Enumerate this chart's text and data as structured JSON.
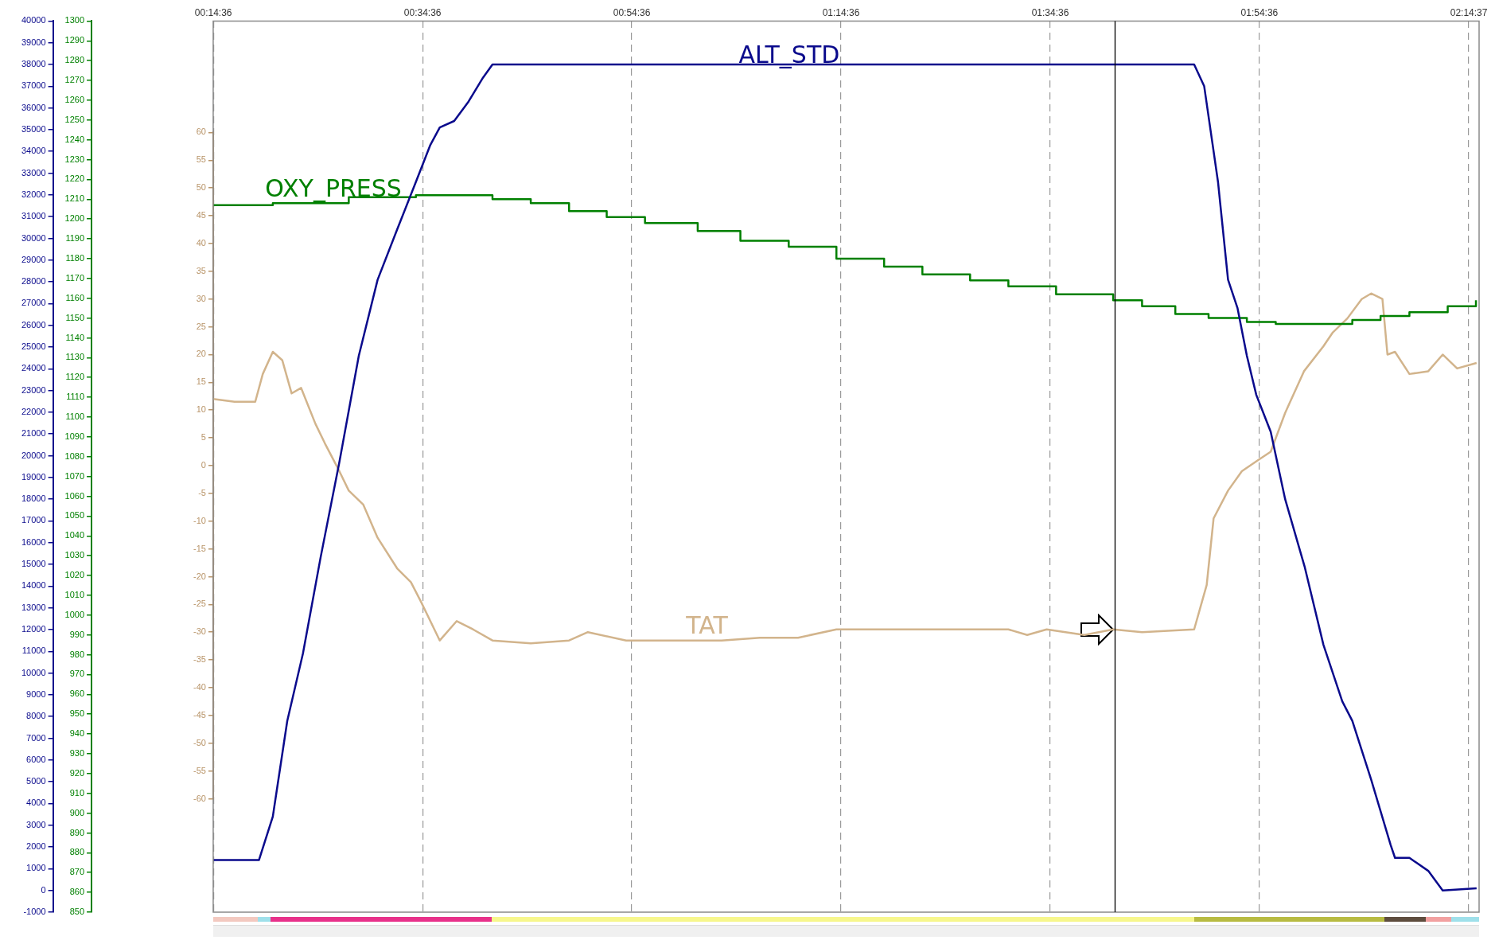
{
  "chart_data": {
    "type": "line",
    "xlim": [
      0.243,
      2.26
    ],
    "xticks": [
      {
        "value": 0.2433,
        "label": "00:14:36"
      },
      {
        "value": 0.5767,
        "label": "00:34:36"
      },
      {
        "value": 0.91,
        "label": "00:54:36"
      },
      {
        "value": 1.2433,
        "label": "01:14:36"
      },
      {
        "value": 1.5767,
        "label": "01:34:36"
      },
      {
        "value": 1.91,
        "label": "01:54:36"
      },
      {
        "value": 2.2436,
        "label": "02:14:37"
      }
    ],
    "ylim": [
      -1000,
      40000
    ],
    "yticks": [
      -1000,
      0,
      1000,
      2000,
      3000,
      4000,
      5000,
      6000,
      7000,
      8000,
      9000,
      10000,
      11000,
      12000,
      13000,
      14000,
      15000,
      16000,
      17000,
      18000,
      19000,
      20000,
      21000,
      22000,
      23000,
      24000,
      25000,
      26000,
      27000,
      28000,
      29000,
      30000,
      31000,
      32000,
      33000,
      34000,
      35000,
      36000,
      37000,
      38000,
      39000,
      40000
    ],
    "y2lim": [
      850,
      1300
    ],
    "y2ticks": [
      850,
      860,
      870,
      880,
      890,
      900,
      910,
      920,
      930,
      940,
      950,
      960,
      970,
      980,
      990,
      1000,
      1010,
      1020,
      1030,
      1040,
      1050,
      1060,
      1070,
      1080,
      1090,
      1100,
      1110,
      1120,
      1130,
      1140,
      1150,
      1160,
      1170,
      1180,
      1190,
      1200,
      1210,
      1220,
      1230,
      1240,
      1250,
      1260,
      1270,
      1280,
      1290,
      1300
    ],
    "y3lim": [
      -60,
      60
    ],
    "y3ticks": [
      -60,
      -55,
      -50,
      -45,
      -40,
      -35,
      -30,
      -25,
      -20,
      -15,
      -10,
      -5,
      0,
      5,
      10,
      15,
      20,
      25,
      30,
      35,
      40,
      45,
      50,
      55,
      60
    ],
    "grid": "x",
    "legend": false,
    "marker": "none",
    "ref_lines": [
      {
        "axis": "x",
        "value": 1.68,
        "color": "#000000"
      }
    ],
    "series": [
      {
        "name": "ALT_STD",
        "color": "#0a0a8c",
        "x": [
          0.243,
          0.316,
          0.338,
          0.361,
          0.386,
          0.414,
          0.444,
          0.475,
          0.505,
          0.536,
          0.566,
          0.589,
          0.604,
          0.627,
          0.65,
          0.673,
          0.688,
          0.718,
          1.806,
          1.822,
          1.844,
          1.86,
          1.875,
          1.89,
          1.905,
          1.928,
          1.951,
          1.982,
          2.012,
          2.042,
          2.058,
          2.088,
          2.119,
          2.126,
          2.149,
          2.179,
          2.202,
          2.256
        ],
        "values": [
          1400,
          1400,
          3400,
          7800,
          10900,
          15300,
          19700,
          24600,
          28100,
          30400,
          32600,
          34300,
          35100,
          35400,
          36300,
          37400,
          38000,
          38000,
          38000,
          37000,
          32600,
          28100,
          26800,
          24600,
          22800,
          21100,
          18000,
          14900,
          11300,
          8700,
          7800,
          5100,
          2100,
          1500,
          1500,
          900,
          0,
          100
        ]
      },
      {
        "name": "OXY_PRESS",
        "type": "step",
        "axis": "y2",
        "color": "#008000",
        "x": [
          0.243,
          0.338,
          0.459,
          0.566,
          0.688,
          0.749,
          0.81,
          0.87,
          0.931,
          1.015,
          1.083,
          1.16,
          1.236,
          1.312,
          1.373,
          1.449,
          1.51,
          1.586,
          1.677,
          1.723,
          1.776,
          1.829,
          1.89,
          1.936,
          2.058,
          2.103,
          2.149,
          2.21,
          2.255
        ],
        "values": [
          1207,
          1208,
          1211,
          1212,
          1210,
          1208,
          1204,
          1201,
          1198,
          1194,
          1189,
          1186,
          1180,
          1176,
          1172,
          1169,
          1166,
          1162,
          1159,
          1156,
          1152,
          1150,
          1148,
          1147,
          1149,
          1151,
          1153,
          1156,
          1159
        ]
      },
      {
        "name": "TAT",
        "axis": "y3",
        "color": "#d2b48c",
        "x": [
          0.243,
          0.277,
          0.31,
          0.322,
          0.338,
          0.353,
          0.368,
          0.383,
          0.406,
          0.421,
          0.444,
          0.459,
          0.482,
          0.505,
          0.536,
          0.558,
          0.574,
          0.604,
          0.631,
          0.657,
          0.688,
          0.749,
          0.81,
          0.84,
          0.901,
          0.962,
          1.053,
          1.114,
          1.175,
          1.236,
          1.342,
          1.418,
          1.51,
          1.54,
          1.571,
          1.631,
          1.677,
          1.723,
          1.806,
          1.826,
          1.837,
          1.86,
          1.882,
          1.908,
          1.928,
          1.951,
          1.981,
          2.012,
          2.027,
          2.05,
          2.073,
          2.088,
          2.106,
          2.114,
          2.126,
          2.149,
          2.179,
          2.202,
          2.225,
          2.256
        ],
        "values": [
          12,
          11.5,
          11.5,
          16.5,
          20.5,
          19,
          13,
          14,
          7.5,
          4,
          -1,
          -4.5,
          -7,
          -13,
          -18.5,
          -21,
          -24.5,
          -31.5,
          -28,
          -29.5,
          -31.5,
          -32,
          -31.5,
          -30,
          -31.5,
          -31.5,
          -31.5,
          -31,
          -31,
          -29.5,
          -29.5,
          -29.5,
          -29.5,
          -30.5,
          -29.5,
          -30.5,
          -29.5,
          -30,
          -29.5,
          -21.5,
          -9.5,
          -4.5,
          -1,
          1,
          2.5,
          9.5,
          17,
          21.5,
          24,
          26.5,
          30,
          31,
          30,
          20,
          20.5,
          16.5,
          17,
          20,
          17.5,
          18.5
        ]
      }
    ]
  }
}
